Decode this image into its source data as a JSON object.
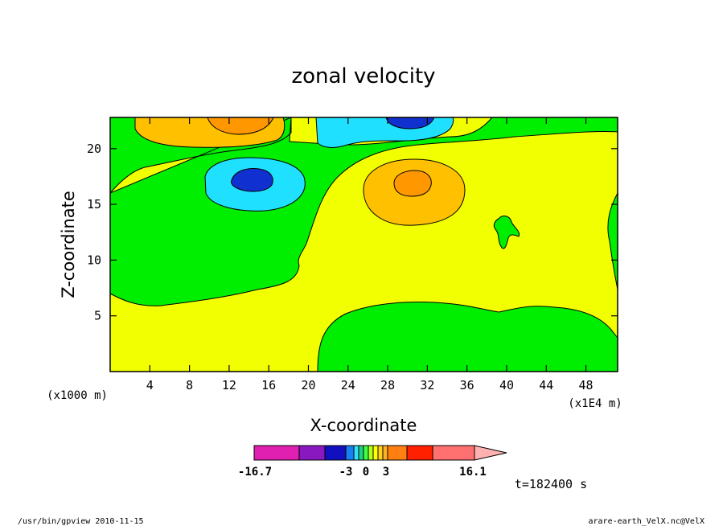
{
  "footer": {
    "left": "/usr/bin/gpview   2010-11-15",
    "right": "arare-earth_VelX.nc@VelX"
  },
  "time_label": "t=182400 s",
  "chart_data": {
    "type": "heatmap",
    "title": "zonal velocity",
    "xlabel": "X-coordinate",
    "ylabel": "Z-coordinate",
    "x_units_label": "(x1E4 m)",
    "z_units_label": "(x1000 m)",
    "xlim": [
      0,
      51.2
    ],
    "zlim": [
      0,
      22.8
    ],
    "x_ticks": [
      4,
      8,
      12,
      16,
      20,
      24,
      28,
      32,
      36,
      40,
      44,
      48
    ],
    "z_ticks": [
      5,
      10,
      15,
      20
    ],
    "x_tick_labels": [
      "4",
      "8",
      "12",
      "16",
      "20",
      "24",
      "28",
      "32",
      "36",
      "40",
      "44",
      "48"
    ],
    "z_tick_labels": [
      "5",
      "10",
      "15",
      "20"
    ],
    "colorbar": {
      "min_label": "-16.7",
      "max_label": "16.1",
      "mid_labels": [
        "-3",
        "0",
        "3"
      ],
      "colors": [
        "#e020b0",
        "#8a18c0",
        "#1010c0",
        "#1880f0",
        "#30e0ff",
        "#20d080",
        "#40ff40",
        "#b0ff20",
        "#ffff00",
        "#ffd020",
        "#ffb020",
        "#ff8010",
        "#ff2000",
        "#ff7070",
        "#ffb0b0"
      ]
    },
    "levels_color": {
      "strong_neg": "#1030d0",
      "neg": "#20e0ff",
      "near_zero_neg": "#00ee00",
      "near_zero_pos": "#f2ff00",
      "pos": "#ffc000",
      "strong_pos": "#ff9800"
    }
  }
}
